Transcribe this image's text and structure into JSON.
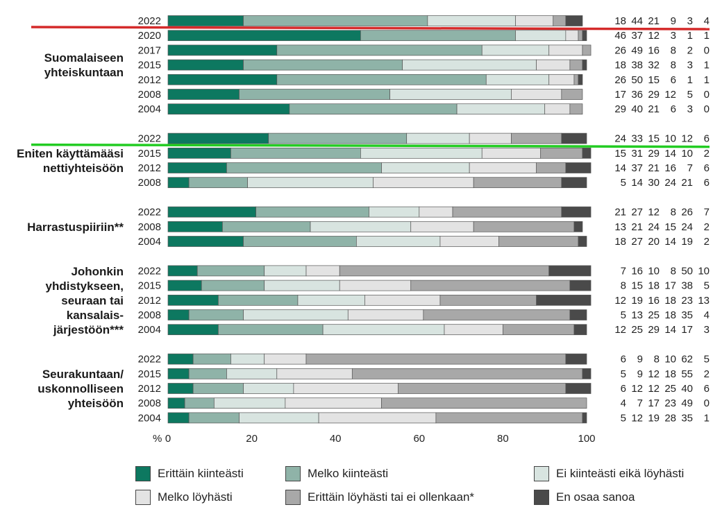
{
  "chart_data": {
    "type": "stacked-bar-horizontal",
    "axis": {
      "unit_label": "%",
      "ticks": [
        "0",
        "20",
        "40",
        "60",
        "80",
        "100"
      ],
      "xlim": [
        0,
        100
      ]
    },
    "categories": [
      "Erittäin kiinteästi",
      "Melko kiinteästi",
      "Ei kiinteästi eikä löyhästi",
      "Melko löyhästi",
      "Erittäin löyhästi tai ei ollenkaan*",
      "En osaa sanoa"
    ],
    "colors": [
      "#0d7860",
      "#8fb3a8",
      "#d8e4e0",
      "#e3e3e3",
      "#a8a8a8",
      "#4a4a4a"
    ],
    "groups": [
      {
        "label": [
          "Suomalaiseen",
          "yhteiskuntaan"
        ],
        "rows": [
          {
            "year": "2022",
            "values": [
              18,
              44,
              21,
              9,
              3,
              4
            ],
            "labels": [
              "18",
              "44",
              "21",
              "9",
              "3",
              "4"
            ]
          },
          {
            "year": "2020",
            "values": [
              46,
              37,
              12,
              3,
              1,
              1
            ],
            "labels": [
              "46",
              "37",
              "12",
              "3",
              "1",
              "1"
            ]
          },
          {
            "year": "2017",
            "values": [
              26,
              49,
              16,
              8,
              2,
              0
            ],
            "labels": [
              "26",
              "49",
              "16",
              "8",
              "2",
              "0"
            ]
          },
          {
            "year": "2015",
            "values": [
              18,
              38,
              32,
              8,
              3,
              1
            ],
            "labels": [
              "18",
              "38",
              "32",
              "8",
              "3",
              "1"
            ]
          },
          {
            "year": "2012",
            "values": [
              26,
              50,
              15,
              6,
              1,
              1
            ],
            "labels": [
              "26",
              "50",
              "15",
              "6",
              "1",
              "1"
            ]
          },
          {
            "year": "2008",
            "values": [
              17,
              36,
              29,
              12,
              5,
              0
            ],
            "labels": [
              "17",
              "36",
              "29",
              "12",
              "5",
              "0"
            ]
          },
          {
            "year": "2004",
            "values": [
              29,
              40,
              21,
              6,
              3,
              0
            ],
            "labels": [
              "29",
              "40",
              "21",
              "6",
              "3",
              "0"
            ]
          }
        ]
      },
      {
        "label": [
          "Eniten käyttämääsi",
          "nettiyhteisöön"
        ],
        "rows": [
          {
            "year": "2022",
            "values": [
              24,
              33,
              15,
              10,
              12,
              6
            ],
            "labels": [
              "24",
              "33",
              "15",
              "10",
              "12",
              "6"
            ]
          },
          {
            "year": "2015",
            "values": [
              15,
              31,
              29,
              14,
              10,
              2
            ],
            "labels": [
              "15",
              "31",
              "29",
              "14",
              "10",
              "2"
            ]
          },
          {
            "year": "2012",
            "values": [
              14,
              37,
              21,
              16,
              7,
              6
            ],
            "labels": [
              "14",
              "37",
              "21",
              "16",
              "7",
              "6"
            ]
          },
          {
            "year": "2008",
            "values": [
              5,
              14,
              30,
              24,
              21,
              6
            ],
            "labels": [
              "5",
              "14",
              "30",
              "24",
              "21",
              "6"
            ]
          }
        ]
      },
      {
        "label": [
          "Harrastuspiiriin**"
        ],
        "rows": [
          {
            "year": "2022",
            "values": [
              21,
              27,
              12,
              8,
              26,
              7
            ],
            "labels": [
              "21",
              "27",
              "12",
              "8",
              "26",
              "7"
            ]
          },
          {
            "year": "2008",
            "values": [
              13,
              21,
              24,
              15,
              24,
              2
            ],
            "labels": [
              "13",
              "21",
              "24",
              "15",
              "24",
              "2"
            ]
          },
          {
            "year": "2004",
            "values": [
              18,
              27,
              20,
              14,
              19,
              2
            ],
            "labels": [
              "18",
              "27",
              "20",
              "14",
              "19",
              "2"
            ]
          }
        ]
      },
      {
        "label": [
          "Johonkin",
          "yhdistykseen,",
          "seuraan tai",
          "kansalais-",
          "järjestöön***"
        ],
        "rows": [
          {
            "year": "2022",
            "values": [
              7,
              16,
              10,
              8,
              50,
              10
            ],
            "labels": [
              "7",
              "16",
              "10",
              "8",
              "50",
              "10"
            ]
          },
          {
            "year": "2015",
            "values": [
              8,
              15,
              18,
              17,
              38,
              5
            ],
            "labels": [
              "8",
              "15",
              "18",
              "17",
              "38",
              "5"
            ]
          },
          {
            "year": "2012",
            "values": [
              12,
              19,
              16,
              18,
              23,
              13
            ],
            "labels": [
              "12",
              "19",
              "16",
              "18",
              "23",
              "13"
            ]
          },
          {
            "year": "2008",
            "values": [
              5,
              13,
              25,
              18,
              35,
              4
            ],
            "labels": [
              "5",
              "13",
              "25",
              "18",
              "35",
              "4"
            ]
          },
          {
            "year": "2004",
            "values": [
              12,
              25,
              29,
              14,
              17,
              3
            ],
            "labels": [
              "12",
              "25",
              "29",
              "14",
              "17",
              "3"
            ]
          }
        ]
      },
      {
        "label": [
          "Seurakuntaan/",
          "uskonnolliseen",
          "yhteisöön"
        ],
        "rows": [
          {
            "year": "2022",
            "values": [
              6,
              9,
              8,
              10,
              62,
              5
            ],
            "labels": [
              "6",
              "9",
              "8",
              "10",
              "62",
              "5"
            ]
          },
          {
            "year": "2015",
            "values": [
              5,
              9,
              12,
              18,
              55,
              2
            ],
            "labels": [
              "5",
              "9",
              "12",
              "18",
              "55",
              "2"
            ]
          },
          {
            "year": "2012",
            "values": [
              6,
              12,
              12,
              25,
              40,
              6
            ],
            "labels": [
              "6",
              "12",
              "12",
              "25",
              "40",
              "6"
            ]
          },
          {
            "year": "2008",
            "values": [
              4,
              7,
              17,
              23,
              49,
              0
            ],
            "labels": [
              "4",
              "7",
              "17",
              "23",
              "49",
              "0"
            ]
          },
          {
            "year": "2004",
            "values": [
              5,
              12,
              19,
              28,
              35,
              1
            ],
            "labels": [
              "5",
              "12",
              "19",
              "28",
              "35",
              "1"
            ]
          }
        ]
      }
    ],
    "highlights": [
      {
        "group": 0,
        "row": 0,
        "color": "#d42a2a"
      },
      {
        "group": 1,
        "row": 0,
        "color": "#22cc22"
      }
    ]
  }
}
